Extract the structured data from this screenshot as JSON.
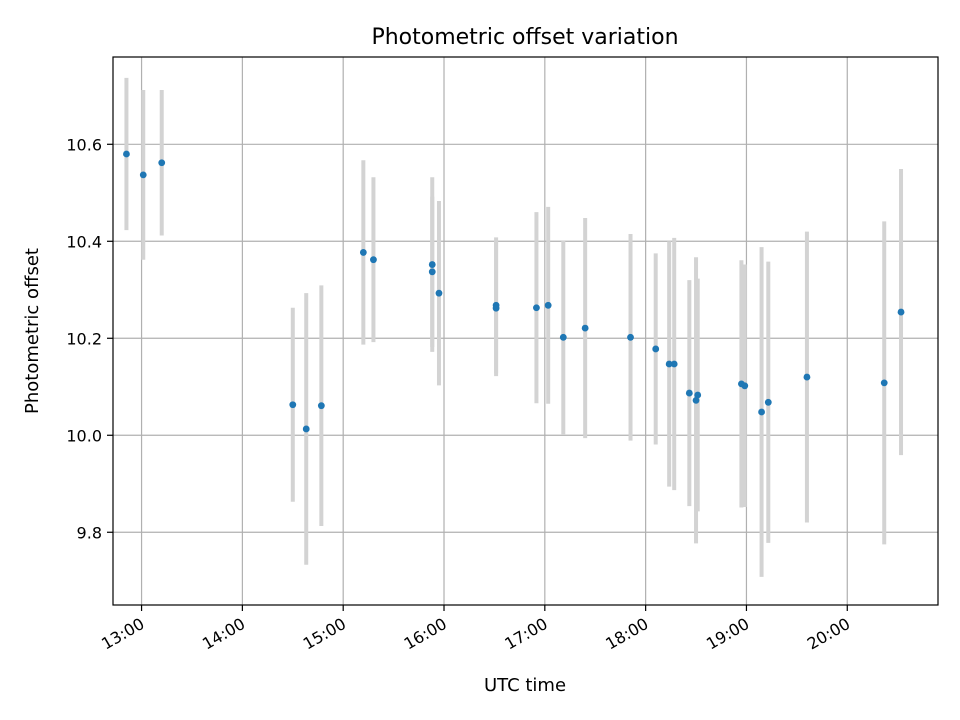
{
  "chart_data": {
    "type": "scatter",
    "title": "Photometric offset variation",
    "xlabel": "UTC time",
    "ylabel": "Photometric offset",
    "grid": true,
    "legend": "none",
    "x_is_time": true,
    "xlim": [
      "12:43",
      "20:54"
    ],
    "ylim": [
      9.65,
      10.78
    ],
    "x_ticks": [
      "13:00",
      "14:00",
      "15:00",
      "16:00",
      "17:00",
      "18:00",
      "19:00",
      "20:00"
    ],
    "y_ticks": [
      9.8,
      10.0,
      10.2,
      10.4,
      10.6
    ],
    "y_tick_labels": [
      "9.8",
      "10.0",
      "10.2",
      "10.4",
      "10.6"
    ],
    "colors": {
      "point": "#1f77b4",
      "errorbar": "#d3d3d3",
      "grid": "#b0b0b0"
    },
    "series": [
      {
        "points": [
          {
            "x": "12:51",
            "y": 10.58,
            "yerr": 0.157
          },
          {
            "x": "13:01",
            "y": 10.537,
            "yerr": 0.175
          },
          {
            "x": "13:12",
            "y": 10.562,
            "yerr": 0.15
          },
          {
            "x": "14:30",
            "y": 10.063,
            "yerr": 0.2
          },
          {
            "x": "14:38",
            "y": 10.013,
            "yerr": 0.28
          },
          {
            "x": "14:47",
            "y": 10.061,
            "yerr": 0.248
          },
          {
            "x": "15:12",
            "y": 10.377,
            "yerr": 0.19
          },
          {
            "x": "15:18",
            "y": 10.362,
            "yerr": 0.17
          },
          {
            "x": "15:53",
            "y": 10.352,
            "yerr": 0.18
          },
          {
            "x": "15:53",
            "y": 10.337,
            "yerr": 0.155
          },
          {
            "x": "15:57",
            "y": 10.293,
            "yerr": 0.19
          },
          {
            "x": "16:31",
            "y": 10.268,
            "yerr": 0.14
          },
          {
            "x": "16:31",
            "y": 10.262,
            "yerr": 0.14
          },
          {
            "x": "16:55",
            "y": 10.263,
            "yerr": 0.197
          },
          {
            "x": "17:02",
            "y": 10.268,
            "yerr": 0.203
          },
          {
            "x": "17:11",
            "y": 10.202,
            "yerr": 0.2
          },
          {
            "x": "17:24",
            "y": 10.221,
            "yerr": 0.227
          },
          {
            "x": "17:51",
            "y": 10.202,
            "yerr": 0.213
          },
          {
            "x": "18:06",
            "y": 10.178,
            "yerr": 0.197
          },
          {
            "x": "18:14",
            "y": 10.147,
            "yerr": 0.253
          },
          {
            "x": "18:17",
            "y": 10.147,
            "yerr": 0.26
          },
          {
            "x": "18:26",
            "y": 10.087,
            "yerr": 0.233
          },
          {
            "x": "18:30",
            "y": 10.072,
            "yerr": 0.295
          },
          {
            "x": "18:31",
            "y": 10.083,
            "yerr": 0.24
          },
          {
            "x": "18:57",
            "y": 10.106,
            "yerr": 0.255
          },
          {
            "x": "18:59",
            "y": 10.102,
            "yerr": 0.25
          },
          {
            "x": "19:09",
            "y": 10.048,
            "yerr": 0.34
          },
          {
            "x": "19:13",
            "y": 10.068,
            "yerr": 0.29
          },
          {
            "x": "19:36",
            "y": 10.12,
            "yerr": 0.3
          },
          {
            "x": "20:22",
            "y": 10.108,
            "yerr": 0.333
          },
          {
            "x": "20:32",
            "y": 10.254,
            "yerr": 0.295
          }
        ]
      }
    ]
  }
}
